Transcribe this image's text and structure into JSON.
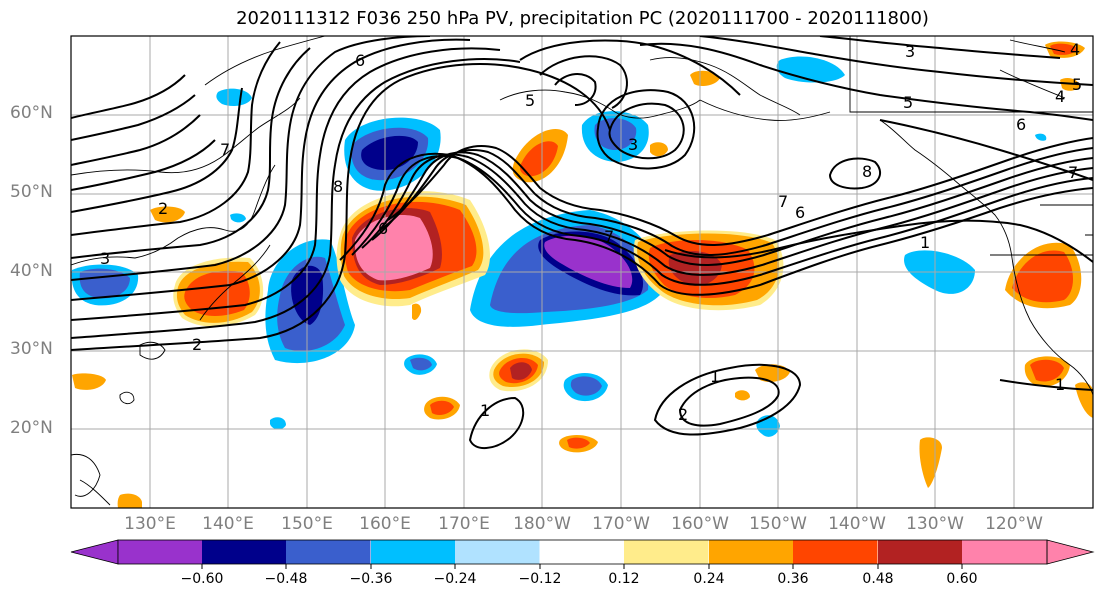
{
  "title": "2020111312 F036 250 hPa PV, precipitation PC (2020111700 - 2020111800)",
  "map": {
    "projection": "cylindrical",
    "lon_range": [
      "120°E",
      "110°W"
    ],
    "lat_range": [
      "10°N",
      "70°N"
    ],
    "lat_labels": [
      "60°N",
      "50°N",
      "40°N",
      "30°N",
      "20°N"
    ],
    "lon_labels": [
      "130°E",
      "140°E",
      "150°E",
      "160°E",
      "170°E",
      "180°W",
      "170°W",
      "160°W",
      "150°W",
      "140°W",
      "130°W",
      "120°W"
    ],
    "grid": true,
    "contour_labels": [
      "1",
      "2",
      "3",
      "4",
      "5",
      "6",
      "7",
      "8"
    ]
  },
  "colorbar": {
    "ticks": [
      "−0.60",
      "−0.48",
      "−0.36",
      "−0.24",
      "−0.12",
      "0.12",
      "0.24",
      "0.36",
      "0.48",
      "0.60"
    ],
    "colors": [
      "#9932cc",
      "#00008b",
      "#3a5fcd",
      "#00bfff",
      "#b0e2ff",
      "#ffffff",
      "#ffec8b",
      "#ffa500",
      "#ff4500",
      "#b22222",
      "#ff82ab",
      "#ff82ab"
    ],
    "extend": "both"
  }
}
